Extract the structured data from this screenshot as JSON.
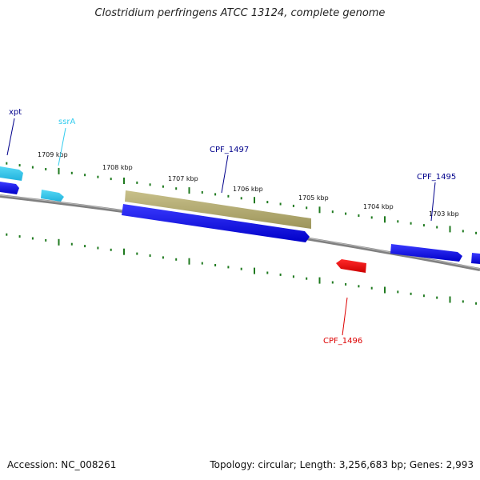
{
  "title": "Clostridium perfringens ATCC 13124, complete genome",
  "accession_text": "Accession: NC_008261",
  "summary_text": "Topology: circular; Length: 3,256,683 bp; Genes: 2,993",
  "ruler_labels": [
    "1709 kbp",
    "1708 kbp",
    "1707 kbp",
    "1706 kbp",
    "1705 kbp",
    "1704 kbp",
    "1703 kbp"
  ],
  "genes": [
    {
      "id": "xpt",
      "label": "xpt",
      "strand": "forward",
      "color": "#00008b"
    },
    {
      "id": "ssrA",
      "label": "ssrA",
      "strand": "forward",
      "color": "#33ccee"
    },
    {
      "id": "CPF_1497",
      "label": "CPF_1497",
      "strand": "reverse",
      "color": "#00008b"
    },
    {
      "id": "CPF_1495",
      "label": "CPF_1495",
      "strand": "reverse",
      "color": "#00008b"
    },
    {
      "id": "CPF_1496",
      "label": "CPF_1496",
      "strand": "forward",
      "color": "#dd0000"
    }
  ],
  "colors": {
    "cds_blue": "#0000ee",
    "rna_cyan": "#33ccee",
    "cds_red": "#ee0000",
    "feature_olive": "#b3ab6b",
    "backbone": "#808080",
    "ticks": "#1f7a1f"
  }
}
